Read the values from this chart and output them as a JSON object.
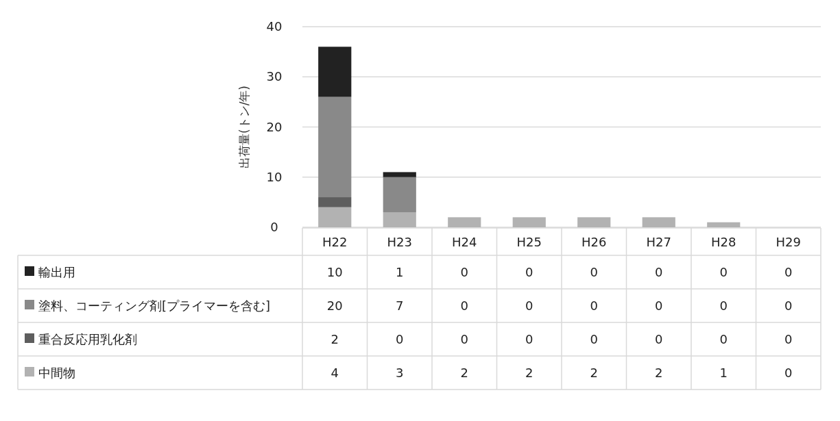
{
  "chart_data": {
    "type": "bar",
    "stacked": true,
    "ylabel": "出荷量(トン/年)",
    "categories": [
      "H22",
      "H23",
      "H24",
      "H25",
      "H26",
      "H27",
      "H28",
      "H29"
    ],
    "series": [
      {
        "name": "中間物",
        "color": "#b2b2b2",
        "values": [
          4,
          3,
          2,
          2,
          2,
          2,
          1,
          0
        ]
      },
      {
        "name": "重合反応用乳化剤",
        "color": "#5e5e5e",
        "values": [
          2,
          0,
          0,
          0,
          0,
          0,
          0,
          0
        ]
      },
      {
        "name": "塗料、コーティング剤[プライマーを含む]",
        "color": "#898989",
        "values": [
          20,
          7,
          0,
          0,
          0,
          0,
          0,
          0
        ]
      },
      {
        "name": "輸出用",
        "color": "#222222",
        "values": [
          10,
          1,
          0,
          0,
          0,
          0,
          0,
          0
        ]
      }
    ],
    "ylim": [
      0,
      40
    ],
    "yticks": [
      0,
      10,
      20,
      30,
      40
    ],
    "grid": "y",
    "legend": "bottom",
    "data_labels": true
  }
}
